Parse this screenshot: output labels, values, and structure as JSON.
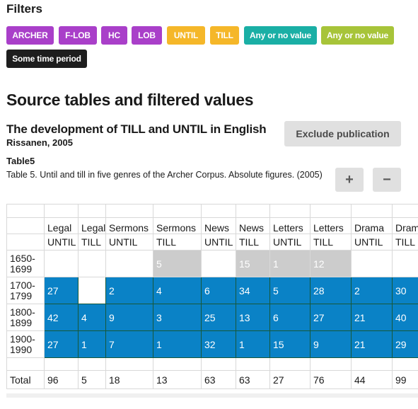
{
  "filters": {
    "title": "Filters",
    "chips": [
      {
        "label": "ARCHER",
        "color": "#a93fc9"
      },
      {
        "label": "F-LOB",
        "color": "#a93fc9"
      },
      {
        "label": "HC",
        "color": "#a93fc9"
      },
      {
        "label": "LOB",
        "color": "#a93fc9"
      },
      {
        "label": "UNTIL",
        "color": "#f5b729"
      },
      {
        "label": "TILL",
        "color": "#f5b729"
      },
      {
        "label": "Any or no value",
        "color": "#1aafa5"
      },
      {
        "label": "Any or no value",
        "color": "#a7c439"
      },
      {
        "label": "Some time period",
        "color": "#1e1e1e"
      }
    ]
  },
  "section": {
    "title": "Source tables and filtered values"
  },
  "publication": {
    "title": "The development of TILL and UNTIL in English",
    "author": "Rissanen, 2005",
    "exclude_label": "Exclude publication"
  },
  "table": {
    "name": "Table5",
    "caption": "Table 5. Until and till in five genres of the Archer Corpus. Absolute figures. (2005)",
    "plus_label": "+",
    "minus_label": "−",
    "genres": [
      "Legal",
      "Legal",
      "Sermons",
      "Sermons",
      "News",
      "News",
      "Letters",
      "Letters",
      "Drama",
      "Drama"
    ],
    "types": [
      "UNTIL",
      "TILL",
      "UNTIL",
      "TILL",
      "UNTIL",
      "TILL",
      "UNTIL",
      "TILL",
      "UNTIL",
      "TILL"
    ],
    "rows": [
      {
        "period": "1650-\n1699",
        "cells": [
          {
            "v": "",
            "s": "none"
          },
          {
            "v": "",
            "s": "none"
          },
          {
            "v": "",
            "s": "none"
          },
          {
            "v": "5",
            "s": "grey"
          },
          {
            "v": "",
            "s": "none"
          },
          {
            "v": "15",
            "s": "grey"
          },
          {
            "v": "1",
            "s": "grey"
          },
          {
            "v": "12",
            "s": "grey"
          },
          {
            "v": "",
            "s": "none"
          },
          {
            "v": "",
            "s": "none"
          }
        ]
      },
      {
        "period": "1700-\n1799",
        "cells": [
          {
            "v": "27",
            "s": "blue"
          },
          {
            "v": "",
            "s": "hollow"
          },
          {
            "v": "2",
            "s": "blue"
          },
          {
            "v": "4",
            "s": "blue"
          },
          {
            "v": "6",
            "s": "blue"
          },
          {
            "v": "34",
            "s": "blue"
          },
          {
            "v": "5",
            "s": "blue"
          },
          {
            "v": "28",
            "s": "blue"
          },
          {
            "v": "2",
            "s": "blue"
          },
          {
            "v": "30",
            "s": "blue"
          }
        ]
      },
      {
        "period": "1800-\n1899",
        "cells": [
          {
            "v": "42",
            "s": "blue"
          },
          {
            "v": "4",
            "s": "blue"
          },
          {
            "v": "9",
            "s": "blue"
          },
          {
            "v": "3",
            "s": "blue"
          },
          {
            "v": "25",
            "s": "blue"
          },
          {
            "v": "13",
            "s": "blue"
          },
          {
            "v": "6",
            "s": "blue"
          },
          {
            "v": "27",
            "s": "blue"
          },
          {
            "v": "21",
            "s": "blue"
          },
          {
            "v": "40",
            "s": "blue"
          }
        ]
      },
      {
        "period": "1900-\n1990",
        "cells": [
          {
            "v": "27",
            "s": "blue"
          },
          {
            "v": "1",
            "s": "blue"
          },
          {
            "v": "7",
            "s": "blue"
          },
          {
            "v": "1",
            "s": "blue"
          },
          {
            "v": "32",
            "s": "blue"
          },
          {
            "v": "1",
            "s": "blue"
          },
          {
            "v": "15",
            "s": "blue"
          },
          {
            "v": "9",
            "s": "blue"
          },
          {
            "v": "21",
            "s": "blue"
          },
          {
            "v": "29",
            "s": "blue"
          }
        ]
      }
    ],
    "total_label": "Total",
    "totals": [
      "96",
      "5",
      "18",
      "13",
      "63",
      "63",
      "27",
      "76",
      "44",
      "99"
    ]
  }
}
